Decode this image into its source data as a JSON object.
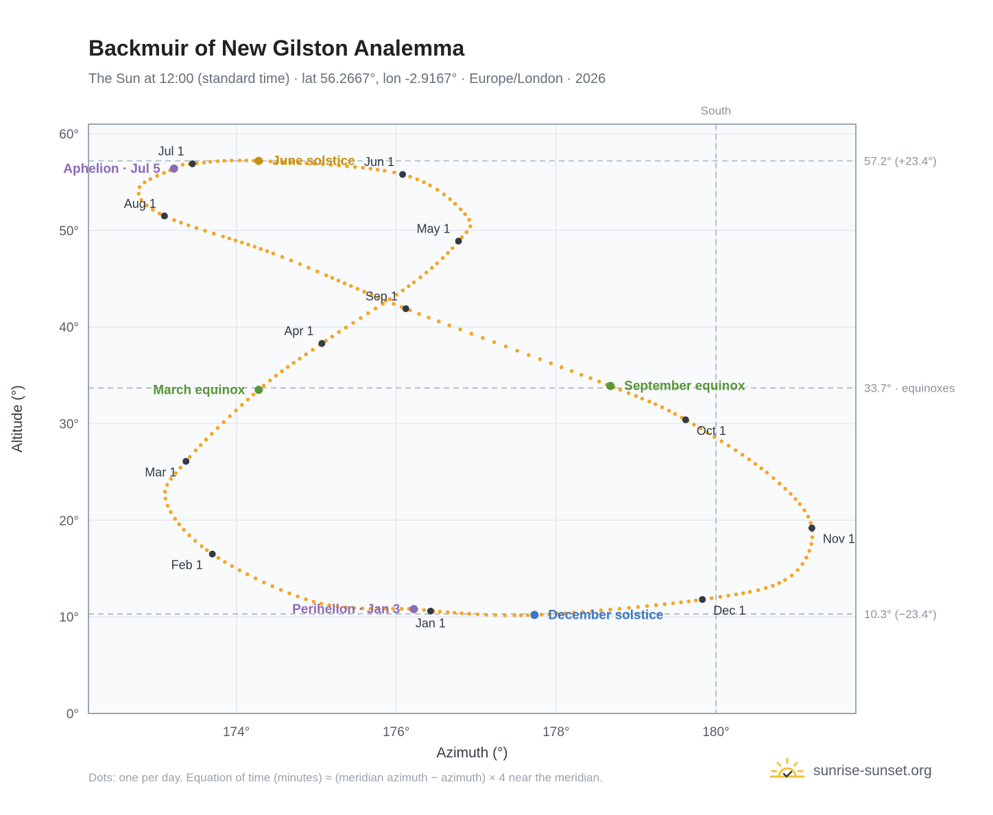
{
  "header": {
    "title": "Backmuir of New Gilston Analemma",
    "subtitle": "The Sun at 12:00 (standard time) · lat 56.2667°, lon -2.9167° · Europe/London · 2026"
  },
  "footer": {
    "note": "Dots: one per day. Equation of time (minutes) ≈ (meridian azimuth − azimuth) × 4 near the meridian.",
    "brand": "sunrise-sunset.org",
    "brand_icon": "sun-logo-icon"
  },
  "colors": {
    "path": "#f5a623",
    "month": "#333a44",
    "solstice_june": "#c8900f",
    "equinox": "#5a9637",
    "solstice_december": "#3b78c2",
    "apsis": "#8e6bb5",
    "reference": "#a9b4c0",
    "plot_bg": "#f8fafc",
    "grid": "#e3e8ee",
    "frame": "#9aa6b4"
  },
  "chart_data": {
    "type": "scatter",
    "xlabel": "Azimuth (°)",
    "ylabel": "Altitude (°)",
    "xlim": [
      172.15,
      181.75
    ],
    "ylim": [
      0,
      61
    ],
    "xticks": [
      174,
      176,
      178,
      180
    ],
    "yticks": [
      0,
      10,
      20,
      30,
      40,
      50,
      60
    ],
    "tick_suffix": "°",
    "grid": true,
    "south_line": {
      "x": 180,
      "label": "South"
    },
    "reference_lines": [
      {
        "y": 57.2,
        "label": "57.2° (+23.4°)"
      },
      {
        "y": 33.7,
        "label": "33.7° · equinoxes"
      },
      {
        "y": 10.3,
        "label": "10.3° (−23.4°)"
      }
    ],
    "path_knots": [
      {
        "x": 176.43,
        "y": 10.6
      },
      {
        "x": 176.22,
        "y": 10.8
      },
      {
        "x": 175.0,
        "y": 11.5
      },
      {
        "x": 173.7,
        "y": 16.5
      },
      {
        "x": 173.12,
        "y": 22.0
      },
      {
        "x": 173.37,
        "y": 26.1
      },
      {
        "x": 174.28,
        "y": 33.5
      },
      {
        "x": 175.07,
        "y": 38.3
      },
      {
        "x": 176.2,
        "y": 44.5
      },
      {
        "x": 176.78,
        "y": 48.9
      },
      {
        "x": 176.88,
        "y": 51.5
      },
      {
        "x": 176.08,
        "y": 55.8
      },
      {
        "x": 174.28,
        "y": 57.2
      },
      {
        "x": 173.45,
        "y": 56.9
      },
      {
        "x": 173.22,
        "y": 56.4
      },
      {
        "x": 172.78,
        "y": 54.3
      },
      {
        "x": 173.1,
        "y": 51.5
      },
      {
        "x": 174.5,
        "y": 47.5
      },
      {
        "x": 176.12,
        "y": 41.9
      },
      {
        "x": 178.68,
        "y": 33.9
      },
      {
        "x": 179.62,
        "y": 30.4
      },
      {
        "x": 180.7,
        "y": 24.5
      },
      {
        "x": 181.2,
        "y": 19.2
      },
      {
        "x": 180.9,
        "y": 14.0
      },
      {
        "x": 179.83,
        "y": 11.8
      },
      {
        "x": 177.73,
        "y": 10.2
      },
      {
        "x": 176.43,
        "y": 10.6
      }
    ],
    "months": [
      {
        "label": "Jan 1",
        "x": 176.43,
        "y": 10.6,
        "pos": "below"
      },
      {
        "label": "Feb 1",
        "x": 173.7,
        "y": 16.5,
        "pos": "below-left"
      },
      {
        "label": "Mar 1",
        "x": 173.37,
        "y": 26.1,
        "pos": "below-left"
      },
      {
        "label": "Apr 1",
        "x": 175.07,
        "y": 38.3,
        "pos": "above-left"
      },
      {
        "label": "May 1",
        "x": 176.78,
        "y": 48.9,
        "pos": "above-left"
      },
      {
        "label": "Jun 1",
        "x": 176.08,
        "y": 55.8,
        "pos": "above-left"
      },
      {
        "label": "Jul 1",
        "x": 173.45,
        "y": 56.9,
        "pos": "above-left"
      },
      {
        "label": "Aug 1",
        "x": 173.1,
        "y": 51.5,
        "pos": "above-left"
      },
      {
        "label": "Sep 1",
        "x": 176.12,
        "y": 41.9,
        "pos": "above-left"
      },
      {
        "label": "Oct 1",
        "x": 179.62,
        "y": 30.4,
        "pos": "below-right"
      },
      {
        "label": "Nov 1",
        "x": 181.2,
        "y": 19.2,
        "pos": "below-right"
      },
      {
        "label": "Dec 1",
        "x": 179.83,
        "y": 11.8,
        "pos": "below-right"
      }
    ],
    "events": [
      {
        "label": "June solstice",
        "x": 174.28,
        "y": 57.2,
        "color": "solstice_june",
        "pos": "right"
      },
      {
        "label": "March equinox",
        "x": 174.28,
        "y": 33.5,
        "color": "equinox",
        "pos": "left"
      },
      {
        "label": "September equinox",
        "x": 178.68,
        "y": 33.9,
        "color": "equinox",
        "pos": "right"
      },
      {
        "label": "December solstice",
        "x": 177.73,
        "y": 10.2,
        "color": "solstice_december",
        "pos": "right"
      },
      {
        "label": "Aphelion · Jul 5",
        "x": 173.22,
        "y": 56.4,
        "color": "apsis",
        "pos": "left"
      },
      {
        "label": "Perihelion · Jan 3",
        "x": 176.22,
        "y": 10.8,
        "color": "apsis",
        "pos": "left"
      }
    ]
  }
}
